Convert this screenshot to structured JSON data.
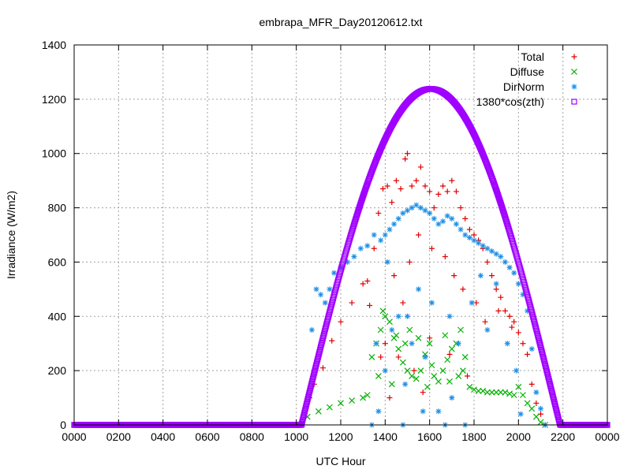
{
  "chart_data": {
    "type": "scatter",
    "title": "embrapa_MFR_Day20120612.txt",
    "xlabel": "UTC Hour",
    "ylabel": "Irradiance (W/m2)",
    "xlim": [
      0,
      24
    ],
    "ylim": [
      0,
      1400
    ],
    "x_ticks": [
      0,
      2,
      4,
      6,
      8,
      10,
      12,
      14,
      16,
      18,
      20,
      22,
      24
    ],
    "x_tick_labels": [
      "0000",
      "0200",
      "0400",
      "0600",
      "0800",
      "1000",
      "1200",
      "1400",
      "1600",
      "1800",
      "2000",
      "2200",
      "0000"
    ],
    "y_ticks": [
      0,
      200,
      400,
      600,
      800,
      1000,
      1200,
      1400
    ],
    "y_tick_labels": [
      "0",
      "200",
      "400",
      "600",
      "800",
      "1000",
      "1200",
      "1400"
    ],
    "grid": true,
    "legend_position": "top-right",
    "series": [
      {
        "name": "Total",
        "marker": "plus",
        "color": "#e00000",
        "points": [
          [
            0,
            0
          ],
          [
            2,
            0
          ],
          [
            4,
            0
          ],
          [
            6,
            0
          ],
          [
            8,
            0
          ],
          [
            10,
            0
          ],
          [
            10.2,
            0
          ],
          [
            10.6,
            100
          ],
          [
            10.8,
            150
          ],
          [
            11.2,
            210
          ],
          [
            11.6,
            310
          ],
          [
            12,
            380
          ],
          [
            12.5,
            450
          ],
          [
            13,
            520
          ],
          [
            13.2,
            530
          ],
          [
            13.3,
            440
          ],
          [
            13.5,
            650
          ],
          [
            13.7,
            780
          ],
          [
            13.9,
            870
          ],
          [
            14.1,
            880
          ],
          [
            14.3,
            820
          ],
          [
            14.5,
            900
          ],
          [
            14.7,
            870
          ],
          [
            14.9,
            980
          ],
          [
            15,
            1000
          ],
          [
            15.2,
            880
          ],
          [
            15.4,
            900
          ],
          [
            15.6,
            950
          ],
          [
            15.8,
            880
          ],
          [
            16,
            860
          ],
          [
            16.2,
            800
          ],
          [
            16.4,
            850
          ],
          [
            16.6,
            880
          ],
          [
            16.8,
            860
          ],
          [
            17,
            900
          ],
          [
            17.2,
            860
          ],
          [
            17.4,
            800
          ],
          [
            17.6,
            760
          ],
          [
            17.8,
            720
          ],
          [
            18,
            700
          ],
          [
            18.2,
            680
          ],
          [
            18.4,
            650
          ],
          [
            18.6,
            600
          ],
          [
            18.8,
            550
          ],
          [
            19,
            500
          ],
          [
            19.2,
            470
          ],
          [
            19.4,
            420
          ],
          [
            19.6,
            400
          ],
          [
            19.8,
            380
          ],
          [
            20,
            340
          ],
          [
            20.2,
            300
          ],
          [
            20.4,
            260
          ],
          [
            20.6,
            150
          ],
          [
            20.8,
            80
          ],
          [
            21,
            40
          ],
          [
            21.2,
            0
          ],
          [
            22,
            0
          ],
          [
            24,
            0
          ],
          [
            14,
            300
          ],
          [
            14.4,
            550
          ],
          [
            14.8,
            450
          ],
          [
            15.1,
            600
          ],
          [
            15.5,
            700
          ],
          [
            16.1,
            650
          ],
          [
            16.7,
            620
          ],
          [
            17.1,
            550
          ],
          [
            17.5,
            500
          ],
          [
            18.1,
            450
          ],
          [
            18.5,
            380
          ],
          [
            19.1,
            420
          ],
          [
            19.7,
            360
          ],
          [
            13.8,
            250
          ],
          [
            14.6,
            250
          ],
          [
            15.3,
            200
          ],
          [
            16,
            320
          ],
          [
            16.9,
            260
          ],
          [
            17.7,
            180
          ],
          [
            15.7,
            120
          ],
          [
            14.2,
            100
          ]
        ]
      },
      {
        "name": "Diffuse",
        "marker": "x",
        "color": "#00b000",
        "points": [
          [
            0,
            0
          ],
          [
            2,
            0
          ],
          [
            4,
            0
          ],
          [
            6,
            0
          ],
          [
            8,
            0
          ],
          [
            10,
            0
          ],
          [
            10.2,
            0
          ],
          [
            10.5,
            30
          ],
          [
            11,
            50
          ],
          [
            11.5,
            65
          ],
          [
            12,
            80
          ],
          [
            12.5,
            90
          ],
          [
            13,
            100
          ],
          [
            13.2,
            110
          ],
          [
            13.4,
            250
          ],
          [
            13.6,
            300
          ],
          [
            13.8,
            350
          ],
          [
            14,
            400
          ],
          [
            14.2,
            380
          ],
          [
            14.4,
            320
          ],
          [
            14.6,
            280
          ],
          [
            14.8,
            230
          ],
          [
            15,
            200
          ],
          [
            15.2,
            180
          ],
          [
            15.4,
            170
          ],
          [
            15.6,
            200
          ],
          [
            15.8,
            260
          ],
          [
            16,
            300
          ],
          [
            16.2,
            180
          ],
          [
            16.4,
            160
          ],
          [
            16.6,
            200
          ],
          [
            16.8,
            240
          ],
          [
            17,
            280
          ],
          [
            17.2,
            300
          ],
          [
            17.4,
            350
          ],
          [
            17.6,
            250
          ],
          [
            17.8,
            140
          ],
          [
            18,
            130
          ],
          [
            18.2,
            125
          ],
          [
            18.4,
            125
          ],
          [
            18.6,
            120
          ],
          [
            18.8,
            120
          ],
          [
            19,
            120
          ],
          [
            19.2,
            120
          ],
          [
            19.4,
            120
          ],
          [
            19.6,
            115
          ],
          [
            19.8,
            110
          ],
          [
            20,
            140
          ],
          [
            20.2,
            110
          ],
          [
            20.4,
            80
          ],
          [
            20.6,
            60
          ],
          [
            20.8,
            30
          ],
          [
            21,
            10
          ],
          [
            21.2,
            0
          ],
          [
            22,
            0
          ],
          [
            24,
            0
          ],
          [
            13.7,
            180
          ],
          [
            14.3,
            150
          ],
          [
            14.9,
            300
          ],
          [
            15.5,
            320
          ],
          [
            16.1,
            220
          ],
          [
            16.7,
            330
          ],
          [
            17.3,
            180
          ],
          [
            13.9,
            420
          ],
          [
            14.5,
            330
          ],
          [
            15.1,
            350
          ],
          [
            15.9,
            140
          ],
          [
            16.9,
            160
          ],
          [
            17.5,
            200
          ]
        ]
      },
      {
        "name": "DirNorm",
        "marker": "star",
        "color": "#1e8fe6",
        "points": [
          [
            0,
            0
          ],
          [
            2,
            0
          ],
          [
            4,
            0
          ],
          [
            6,
            0
          ],
          [
            8,
            0
          ],
          [
            10,
            0
          ],
          [
            10.3,
            0
          ],
          [
            10.7,
            350
          ],
          [
            10.9,
            500
          ],
          [
            11.1,
            480
          ],
          [
            11.3,
            450
          ],
          [
            11.5,
            500
          ],
          [
            11.7,
            560
          ],
          [
            12,
            580
          ],
          [
            12.3,
            600
          ],
          [
            12.6,
            620
          ],
          [
            12.9,
            650
          ],
          [
            13.2,
            660
          ],
          [
            13.5,
            700
          ],
          [
            13.8,
            680
          ],
          [
            14,
            700
          ],
          [
            14.2,
            720
          ],
          [
            14.4,
            740
          ],
          [
            14.6,
            760
          ],
          [
            14.8,
            780
          ],
          [
            15,
            790
          ],
          [
            15.2,
            800
          ],
          [
            15.4,
            810
          ],
          [
            15.6,
            800
          ],
          [
            15.8,
            790
          ],
          [
            16,
            780
          ],
          [
            16.2,
            760
          ],
          [
            16.4,
            740
          ],
          [
            16.6,
            750
          ],
          [
            16.8,
            770
          ],
          [
            17,
            760
          ],
          [
            17.2,
            740
          ],
          [
            17.4,
            720
          ],
          [
            17.6,
            700
          ],
          [
            17.8,
            690
          ],
          [
            18,
            680
          ],
          [
            18.2,
            670
          ],
          [
            18.4,
            660
          ],
          [
            18.6,
            650
          ],
          [
            18.8,
            640
          ],
          [
            19,
            630
          ],
          [
            19.2,
            620
          ],
          [
            19.4,
            600
          ],
          [
            19.6,
            580
          ],
          [
            19.8,
            560
          ],
          [
            20,
            520
          ],
          [
            20.2,
            480
          ],
          [
            20.4,
            420
          ],
          [
            20.6,
            280
          ],
          [
            20.8,
            120
          ],
          [
            21,
            60
          ],
          [
            21.2,
            0
          ],
          [
            22,
            0
          ],
          [
            24,
            0
          ],
          [
            13.4,
            0
          ],
          [
            13.7,
            50
          ],
          [
            14,
            200
          ],
          [
            14.3,
            350
          ],
          [
            14.6,
            400
          ],
          [
            14.9,
            150
          ],
          [
            15.2,
            300
          ],
          [
            15.5,
            500
          ],
          [
            15.8,
            250
          ],
          [
            16.1,
            450
          ],
          [
            16.4,
            50
          ],
          [
            16.7,
            0
          ],
          [
            17,
            100
          ],
          [
            17.3,
            300
          ],
          [
            17.6,
            0
          ],
          [
            17.9,
            450
          ],
          [
            18.3,
            550
          ],
          [
            18.6,
            350
          ],
          [
            19,
            520
          ],
          [
            19.5,
            300
          ],
          [
            19.9,
            200
          ],
          [
            20.1,
            40
          ],
          [
            14.1,
            600
          ],
          [
            15,
            400
          ],
          [
            16.9,
            400
          ],
          [
            13.6,
            300
          ],
          [
            14.8,
            0
          ],
          [
            15.7,
            50
          ]
        ]
      },
      {
        "name": "1380*cos(zth)",
        "marker": "square",
        "color": "#a000ff",
        "curve": {
          "amplitude": 1238,
          "peak_x": 16.05,
          "zero_start_x": 10.23,
          "zero_end_x": 21.87
        }
      }
    ]
  }
}
